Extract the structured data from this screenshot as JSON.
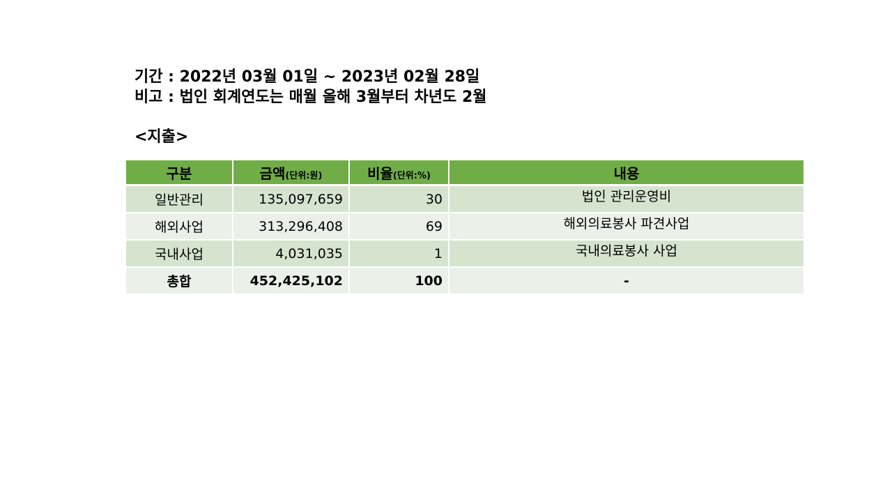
{
  "header": {
    "period": "기간 : 2022년 03월 01일 ~ 2023년 02월 28일",
    "note": "비고 : 법인 회계연도는 매월 올해 3월부터 차년도 2월"
  },
  "section_title": "<지출>",
  "table": {
    "headers": {
      "category": "구분",
      "amount": "금액",
      "amount_unit": "(단위:원)",
      "ratio": "비율",
      "ratio_unit": "(단위:%)",
      "description": "내용"
    },
    "rows": [
      {
        "category": "일반관리",
        "amount": "135,097,659",
        "ratio": "30",
        "description": "법인 관리운영비"
      },
      {
        "category": "해외사업",
        "amount": "313,296,408",
        "ratio": "69",
        "description": "해외의료봉사 파견사업"
      },
      {
        "category": "국내사업",
        "amount": "4,031,035",
        "ratio": "1",
        "description": "국내의료봉사 사업"
      }
    ],
    "total": {
      "category": "총합",
      "amount": "452,425,102",
      "ratio": "100",
      "description": "-"
    }
  },
  "colors": {
    "header_bg": "#70ad47",
    "row_odd_bg": "#d5e3cf",
    "row_even_bg": "#ebf1e9"
  }
}
